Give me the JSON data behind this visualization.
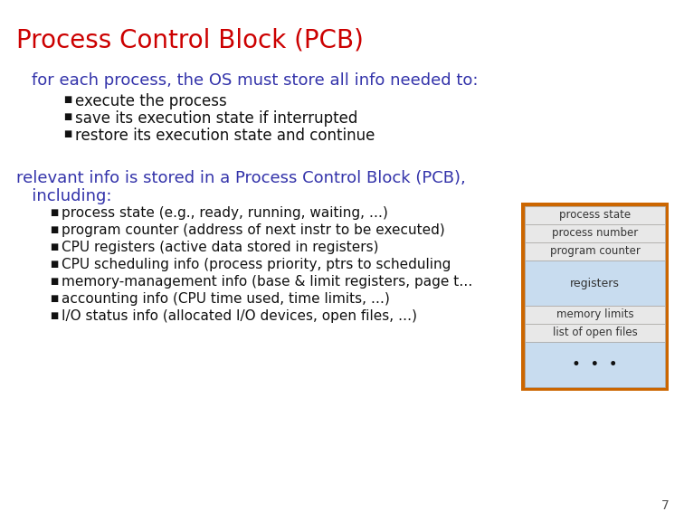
{
  "title": "Process Control Block (PCB)",
  "title_color": "#CC0000",
  "title_fontsize": 20,
  "subtitle1": "for each process, the OS must store all info needed to:",
  "subtitle1_color": "#3333AA",
  "subtitle1_fontsize": 13,
  "bullets1": [
    "execute the process",
    "save its execution state if interrupted",
    "restore its execution state and continue"
  ],
  "bullet1_color": "#111111",
  "bullet1_fontsize": 12,
  "subtitle2_line1": "relevant info is stored in a Process Control Block (PCB),",
  "subtitle2_line2": "   including:",
  "subtitle2_color": "#3333AA",
  "subtitle2_fontsize": 13,
  "bullets2": [
    "process state (e.g., ready, running, waiting, …)",
    "program counter (address of next instr to be executed)",
    "CPU registers (active data stored in registers)",
    "CPU scheduling info (process priority, ptrs to scheduling",
    "memory-management info (base & limit registers, page t…",
    "accounting info (CPU time used, time limits, …)",
    "I/O status info (allocated I/O devices, open files, …)"
  ],
  "bullet2_color": "#111111",
  "bullet2_fontsize": 11,
  "pcb_labels_white": [
    "process state",
    "process number",
    "program counter"
  ],
  "pcb_label_registers": "registers",
  "pcb_labels_white2": [
    "memory limits",
    "list of open files"
  ],
  "pcb_dots": "•  •  •",
  "pcb_box_color": "#CC6600",
  "pcb_white_bg": "#E8E8E8",
  "pcb_blue_bg": "#C8DCEF",
  "page_number": "7",
  "bg_color": "#FFFFFF"
}
